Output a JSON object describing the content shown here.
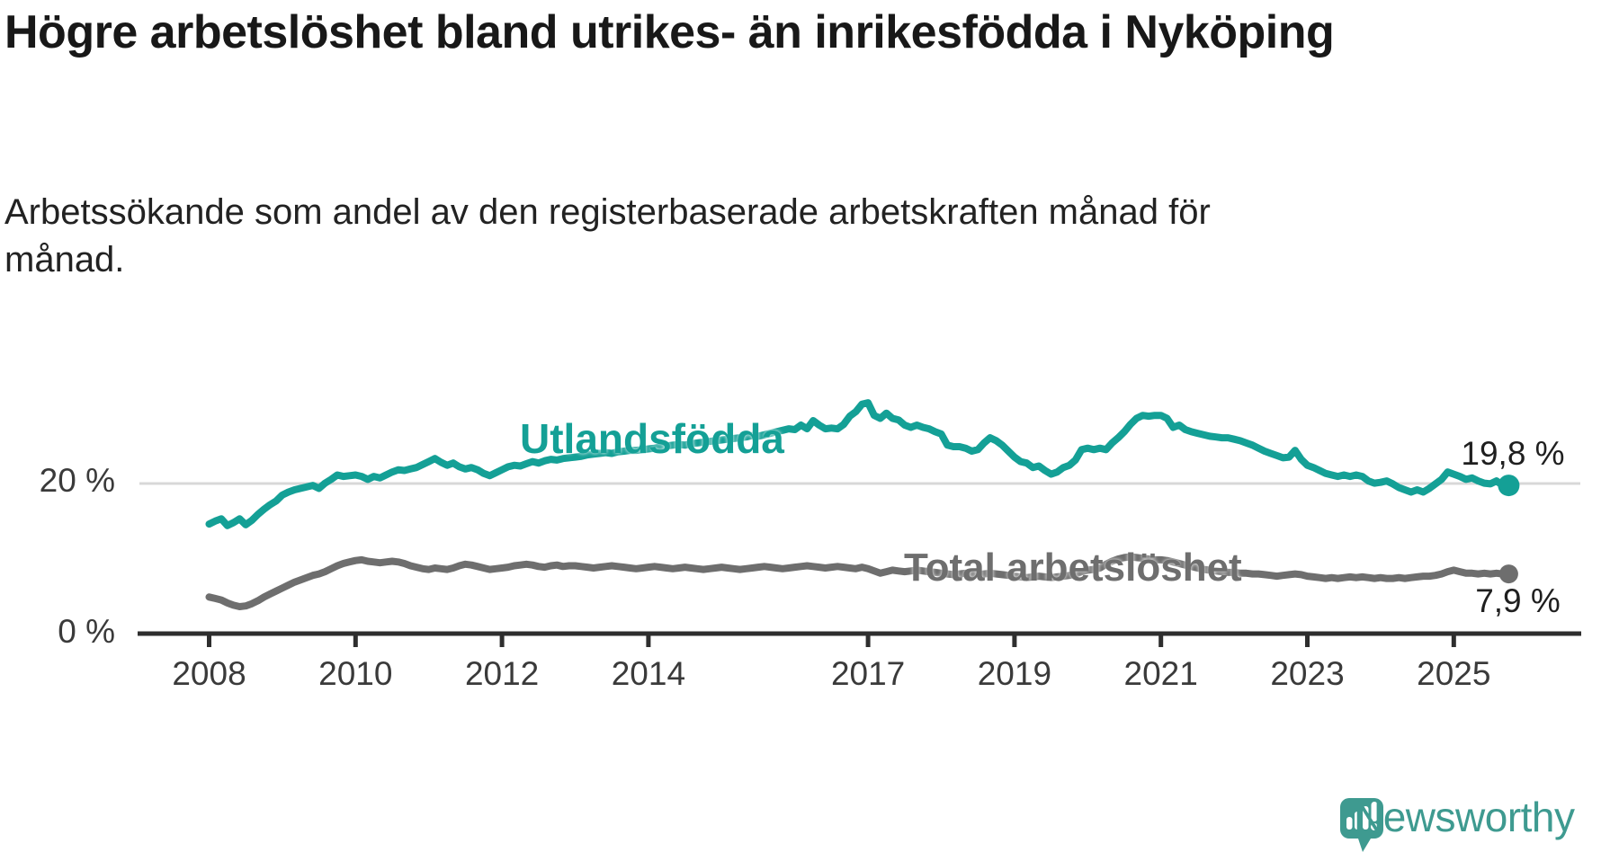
{
  "header": {
    "title": "Högre arbetslöshet bland utrikes- än inrikesfödda i Nyköping",
    "subtitle": "Arbetssökande som andel av den registerbaserade arbetskraften månad för månad."
  },
  "chart_data": {
    "type": "line",
    "title": "Högre arbetslöshet bland utrikes- än inrikesfödda i Nyköping",
    "subtitle": "Arbetssökande som andel av den registerbaserade arbetskraften månad för månad.",
    "frequency": "monthly",
    "x_start": "2008-01",
    "x_end": "2025-10",
    "x_tick_years": [
      2008,
      2010,
      2012,
      2014,
      2017,
      2019,
      2021,
      2023,
      2025
    ],
    "x_tick_labels": [
      "2008",
      "2010",
      "2012",
      "2014",
      "2017",
      "2019",
      "2021",
      "2023",
      "2025"
    ],
    "y_tick_labels": [
      "0 %",
      "20 %"
    ],
    "y_tick_values": [
      0,
      20
    ],
    "ylim": [
      0,
      33
    ],
    "grid": "y-gridline-at-20-only",
    "legend_position": "inline-labels-on-lines",
    "series": [
      {
        "name": "Utlandsfödda",
        "color": "#14A096",
        "end_label": "19,8 %",
        "end_value": 19.8,
        "values": [
          14.6,
          15.0,
          15.3,
          14.4,
          14.8,
          15.3,
          14.5,
          15.1,
          15.9,
          16.6,
          17.2,
          17.7,
          18.5,
          18.9,
          19.2,
          19.4,
          19.6,
          19.8,
          19.4,
          20.1,
          20.6,
          21.2,
          21.0,
          21.1,
          21.2,
          21.0,
          20.6,
          21.0,
          20.8,
          21.2,
          21.6,
          21.9,
          21.8,
          22.0,
          22.2,
          22.6,
          23.0,
          23.4,
          22.9,
          22.5,
          22.8,
          22.3,
          22.0,
          22.2,
          21.9,
          21.4,
          21.1,
          21.5,
          21.9,
          22.3,
          22.5,
          22.4,
          22.7,
          23.0,
          22.8,
          23.1,
          23.3,
          23.2,
          23.4,
          23.5,
          23.6,
          23.7,
          23.9,
          24.0,
          24.1,
          24.2,
          24.1,
          24.3,
          24.4,
          24.5,
          24.5,
          24.6,
          24.7,
          24.8,
          25.0,
          25.1,
          25.2,
          25.3,
          25.2,
          25.4,
          25.5,
          25.6,
          25.7,
          25.8,
          25.9,
          26.0,
          26.1,
          26.2,
          26.3,
          26.5,
          26.4,
          26.6,
          26.8,
          27.0,
          27.2,
          27.4,
          27.3,
          27.9,
          27.4,
          28.5,
          27.9,
          27.4,
          27.5,
          27.4,
          28.0,
          29.1,
          29.7,
          30.7,
          30.9,
          29.2,
          28.8,
          29.5,
          28.8,
          28.6,
          27.9,
          27.6,
          27.9,
          27.6,
          27.4,
          27.0,
          26.7,
          25.2,
          25.0,
          25.0,
          24.8,
          24.4,
          24.6,
          25.5,
          26.2,
          25.8,
          25.2,
          24.4,
          23.6,
          23.0,
          22.8,
          22.2,
          22.4,
          21.8,
          21.3,
          21.6,
          22.2,
          22.5,
          23.2,
          24.6,
          24.8,
          24.6,
          24.8,
          24.6,
          25.5,
          26.2,
          27.0,
          28.0,
          28.8,
          29.2,
          29.1,
          29.2,
          29.2,
          28.8,
          27.6,
          27.9,
          27.3,
          27.0,
          26.8,
          26.6,
          26.4,
          26.3,
          26.2,
          26.2,
          26.0,
          25.8,
          25.5,
          25.2,
          24.8,
          24.4,
          24.1,
          23.8,
          23.5,
          23.6,
          24.5,
          23.3,
          22.5,
          22.2,
          21.8,
          21.4,
          21.2,
          21.0,
          21.2,
          21.0,
          21.2,
          21.0,
          20.4,
          20.1,
          20.2,
          20.4,
          20.0,
          19.5,
          19.2,
          18.9,
          19.2,
          18.9,
          19.4,
          20.0,
          20.6,
          21.6,
          21.3,
          21.0,
          20.6,
          20.8,
          20.4,
          20.1,
          20.0,
          20.4,
          19.8,
          19.8
        ]
      },
      {
        "name": "Total arbetslöshet",
        "color": "#6E6E6E",
        "end_label": "7,9 %",
        "end_value": 7.9,
        "values": [
          4.8,
          4.6,
          4.4,
          4.0,
          3.7,
          3.5,
          3.6,
          3.9,
          4.3,
          4.8,
          5.2,
          5.6,
          6.0,
          6.4,
          6.8,
          7.1,
          7.4,
          7.7,
          7.9,
          8.2,
          8.6,
          9.0,
          9.3,
          9.5,
          9.7,
          9.8,
          9.6,
          9.5,
          9.4,
          9.5,
          9.6,
          9.5,
          9.3,
          9.0,
          8.8,
          8.6,
          8.5,
          8.7,
          8.6,
          8.5,
          8.7,
          9.0,
          9.2,
          9.1,
          8.9,
          8.7,
          8.5,
          8.6,
          8.7,
          8.8,
          9.0,
          9.1,
          9.2,
          9.1,
          8.9,
          8.8,
          9.0,
          9.1,
          8.9,
          9.0,
          9.0,
          8.9,
          8.8,
          8.7,
          8.8,
          8.9,
          9.0,
          8.9,
          8.8,
          8.7,
          8.6,
          8.7,
          8.8,
          8.9,
          8.8,
          8.7,
          8.6,
          8.7,
          8.8,
          8.7,
          8.6,
          8.5,
          8.6,
          8.7,
          8.8,
          8.7,
          8.6,
          8.5,
          8.6,
          8.7,
          8.8,
          8.9,
          8.8,
          8.7,
          8.6,
          8.7,
          8.8,
          8.9,
          9.0,
          8.9,
          8.8,
          8.7,
          8.8,
          8.9,
          8.8,
          8.7,
          8.6,
          8.8,
          8.6,
          8.3,
          8.0,
          8.2,
          8.4,
          8.3,
          8.2,
          8.3,
          8.4,
          8.3,
          8.2,
          8.1,
          8.0,
          7.9,
          7.8,
          7.9,
          8.0,
          7.9,
          7.8,
          7.9,
          8.0,
          7.9,
          7.8,
          7.7,
          7.6,
          7.5,
          7.4,
          7.5,
          7.6,
          7.5,
          7.4,
          7.5,
          7.6,
          7.7,
          7.9,
          8.2,
          8.4,
          8.5,
          8.7,
          9.2,
          9.6,
          9.9,
          10.1,
          10.2,
          10.1,
          10.0,
          9.9,
          9.8,
          9.8,
          9.7,
          9.5,
          9.3,
          9.1,
          8.9,
          8.7,
          8.5,
          8.4,
          8.3,
          8.2,
          8.1,
          8.1,
          8.0,
          8.0,
          7.9,
          7.9,
          7.8,
          7.7,
          7.6,
          7.7,
          7.8,
          7.9,
          7.8,
          7.6,
          7.5,
          7.4,
          7.3,
          7.4,
          7.3,
          7.4,
          7.5,
          7.4,
          7.5,
          7.4,
          7.3,
          7.4,
          7.3,
          7.3,
          7.4,
          7.3,
          7.4,
          7.5,
          7.6,
          7.6,
          7.7,
          7.9,
          8.2,
          8.4,
          8.2,
          8.0,
          8.0,
          7.9,
          8.0,
          7.9,
          8.0,
          7.9,
          7.9
        ]
      }
    ]
  },
  "footer": {
    "brand": "Newsworthy"
  },
  "colors": {
    "series_utlandsfodda": "#14A096",
    "series_total": "#6E6E6E",
    "title_text": "#181818",
    "axis": "#2E2E2E",
    "tick_text": "#3a3a3a",
    "gridline": "#D8D8D8",
    "brand_teal": "#3E9A90",
    "background": "#FFFFFF"
  }
}
